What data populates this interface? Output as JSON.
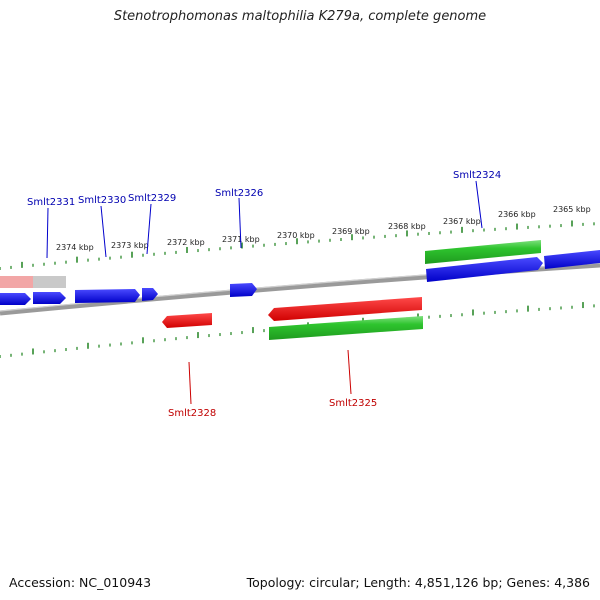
{
  "title": "Stenotrophomonas maltophilia K279a, complete genome",
  "footer": {
    "accession": "Accession: NC_010943",
    "topology": "Topology: circular; Length: 4,851,126 bp; Genes: 4,386"
  },
  "colors": {
    "forward_gene": "#0000ee",
    "reverse_gene": "#ee0000",
    "cds_band": "#2ec42e",
    "backbone": "#888888",
    "tick": "#2e8b2e"
  },
  "scale_labels": [
    "2374 kbp",
    "2373 kbp",
    "2372 kbp",
    "2371 kbp",
    "2370 kbp",
    "2369 kbp",
    "2368 kbp",
    "2367 kbp",
    "2366 kbp",
    "2365 kbp"
  ],
  "top_gene_labels": [
    "Smlt2331",
    "Smlt2330",
    "Smlt2329",
    "Smlt2326",
    "Smlt2324"
  ],
  "bottom_gene_labels": [
    "Smlt2328",
    "Smlt2325"
  ]
}
